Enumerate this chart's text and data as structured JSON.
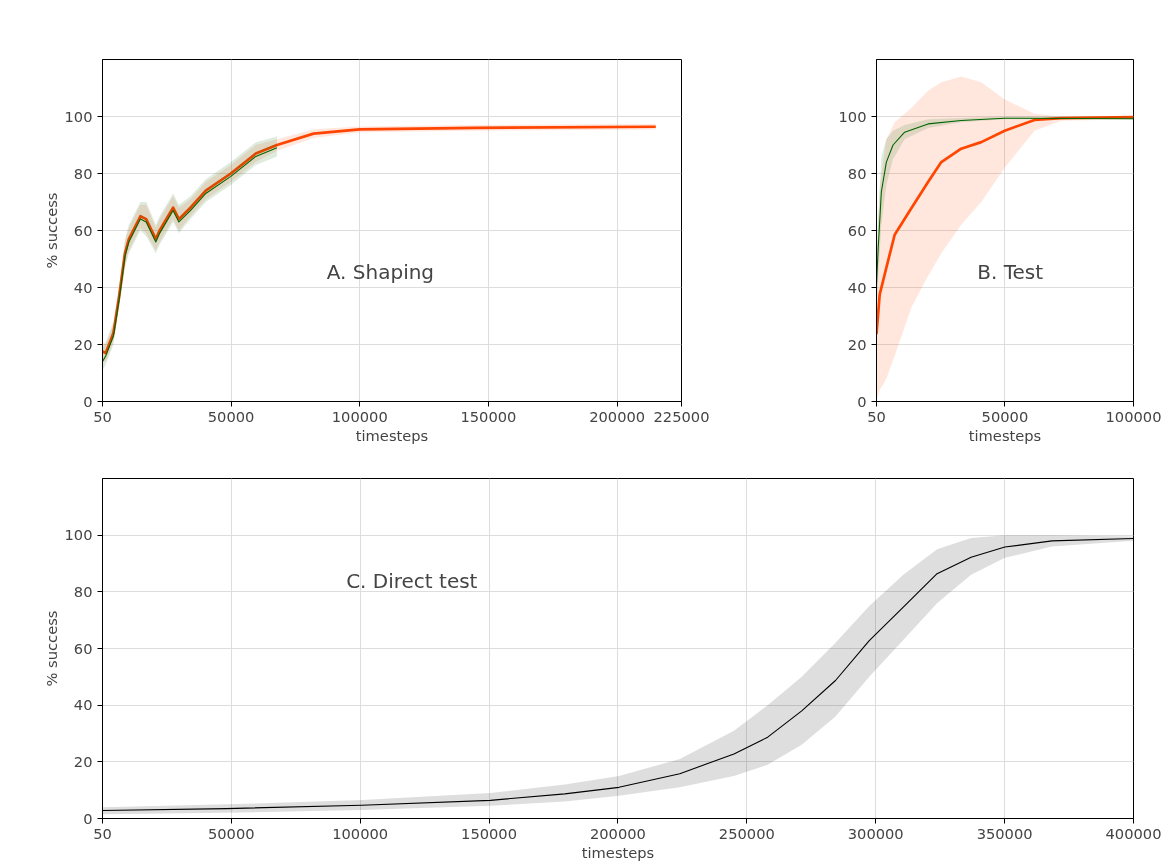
{
  "chart_data": [
    {
      "type": "line",
      "xlabel": "timesteps",
      "ylabel": "% success",
      "annotations": [
        "A. Shaping"
      ],
      "xlim": [
        50,
        225000
      ],
      "xticks": [
        50,
        50000,
        100000,
        150000,
        200000,
        225000
      ],
      "ylim": [
        0,
        120
      ],
      "yticks": [
        0,
        20,
        40,
        60,
        80,
        100
      ],
      "grid": true,
      "series": [
        {
          "color": "#ff4500",
          "x": [
            50,
            1320,
            4300,
            6540,
            8790,
            10290,
            14770,
            17020,
            20750,
            22240,
            27480,
            29720,
            34200,
            40180,
            49900,
            59620,
            67830,
            82040,
            99960,
            144800,
            215000
          ],
          "values": [
            17.6,
            17,
            24,
            37,
            52,
            57,
            65,
            64,
            57,
            60,
            68,
            64,
            68,
            74,
            80,
            87,
            90,
            94,
            95.5,
            96,
            96.4
          ],
          "lower": [
            14,
            14,
            21,
            34,
            48,
            53,
            61,
            59,
            53,
            56,
            64,
            60,
            65,
            71,
            77,
            84,
            88,
            92.5,
            94.5,
            95,
            95.4
          ],
          "upper": [
            21,
            20,
            27,
            40,
            56,
            61,
            69,
            69,
            61,
            64,
            72,
            68,
            71,
            77,
            83,
            90,
            92,
            95.5,
            96.5,
            97,
            97.4
          ]
        },
        {
          "color": "#006400",
          "x": [
            50,
            1320,
            4300,
            6540,
            8790,
            10290,
            14770,
            17020,
            20750,
            22240,
            27480,
            29720,
            34200,
            40180,
            49900,
            59620,
            67830
          ],
          "values": [
            14,
            16,
            23,
            36,
            51,
            56,
            64,
            63,
            56,
            59,
            67,
            63,
            67,
            73,
            79,
            86,
            89
          ],
          "lower": [
            11,
            13,
            20,
            33,
            47,
            52,
            60,
            58,
            52,
            55,
            63,
            59,
            64,
            70,
            76,
            83,
            86
          ],
          "upper": [
            19,
            21,
            28,
            41,
            57,
            62,
            70,
            70,
            62,
            65,
            73,
            69,
            72,
            78,
            84,
            91,
            93
          ]
        }
      ]
    },
    {
      "type": "line",
      "xlabel": "timesteps",
      "annotations": [
        "B. Test"
      ],
      "xlim": [
        50,
        100000
      ],
      "xticks": [
        50,
        50000,
        100000
      ],
      "ylim": [
        0,
        120
      ],
      "yticks": [
        0,
        20,
        40,
        60,
        80,
        100
      ],
      "grid": true,
      "series": [
        {
          "color": "#ff4500",
          "x": [
            50,
            1300,
            3890,
            7120,
            13600,
            20100,
            25260,
            33000,
            40800,
            49900,
            61500,
            71900,
            100000
          ],
          "values": [
            23.6,
            37.6,
            47,
            58.5,
            67.8,
            77,
            84,
            88.7,
            91,
            95,
            98.8,
            99.4,
            99.8
          ],
          "lower": [
            0,
            4,
            8,
            16,
            33,
            44,
            52,
            62,
            70,
            82,
            95,
            98.5,
            99
          ],
          "upper": [
            48,
            75,
            92,
            98,
            103,
            109,
            112,
            114,
            112,
            106,
            101,
            100,
            100
          ]
        },
        {
          "color": "#006400",
          "x": [
            50,
            650,
            1940,
            3890,
            6480,
            11000,
            20100,
            33000,
            49900,
            100000
          ],
          "values": [
            41,
            52.7,
            73.6,
            84,
            90,
            94.5,
            97.4,
            98.6,
            99.4,
            99.2
          ],
          "lower": [
            30,
            42,
            62,
            76,
            85,
            92,
            96,
            98,
            99,
            99
          ],
          "upper": [
            52,
            63,
            86,
            92,
            95,
            97,
            99,
            99.5,
            100,
            100
          ]
        }
      ]
    },
    {
      "type": "line",
      "xlabel": "timesteps",
      "ylabel": "% success",
      "annotations": [
        "C. Direct test"
      ],
      "xlim": [
        50,
        400000
      ],
      "xticks": [
        50,
        50000,
        100000,
        150000,
        200000,
        250000,
        300000,
        350000,
        400000
      ],
      "ylim": [
        0,
        120
      ],
      "yticks": [
        0,
        20,
        40,
        60,
        80,
        100
      ],
      "grid": true,
      "series": [
        {
          "color": "#000000",
          "x": [
            50,
            48100,
            100600,
            150500,
            179400,
            200400,
            224000,
            245000,
            258100,
            271300,
            284400,
            297500,
            310700,
            323800,
            337000,
            350100,
            368400,
            400000
          ],
          "values": [
            2.8,
            3.5,
            4.7,
            6.4,
            8.7,
            11,
            15.8,
            22.8,
            28.7,
            38,
            48.7,
            62.8,
            74.6,
            86.4,
            92.2,
            95.8,
            98,
            98.8
          ],
          "lower": [
            1.5,
            2,
            3,
            4.5,
            6,
            8,
            11,
            15,
            19,
            26,
            36,
            50,
            63,
            76,
            86,
            92,
            96,
            98
          ],
          "upper": [
            4,
            5,
            6.5,
            9,
            12,
            15,
            21,
            31,
            40,
            50,
            62,
            75,
            86,
            95,
            99,
            100,
            100,
            99.5
          ]
        }
      ]
    }
  ]
}
